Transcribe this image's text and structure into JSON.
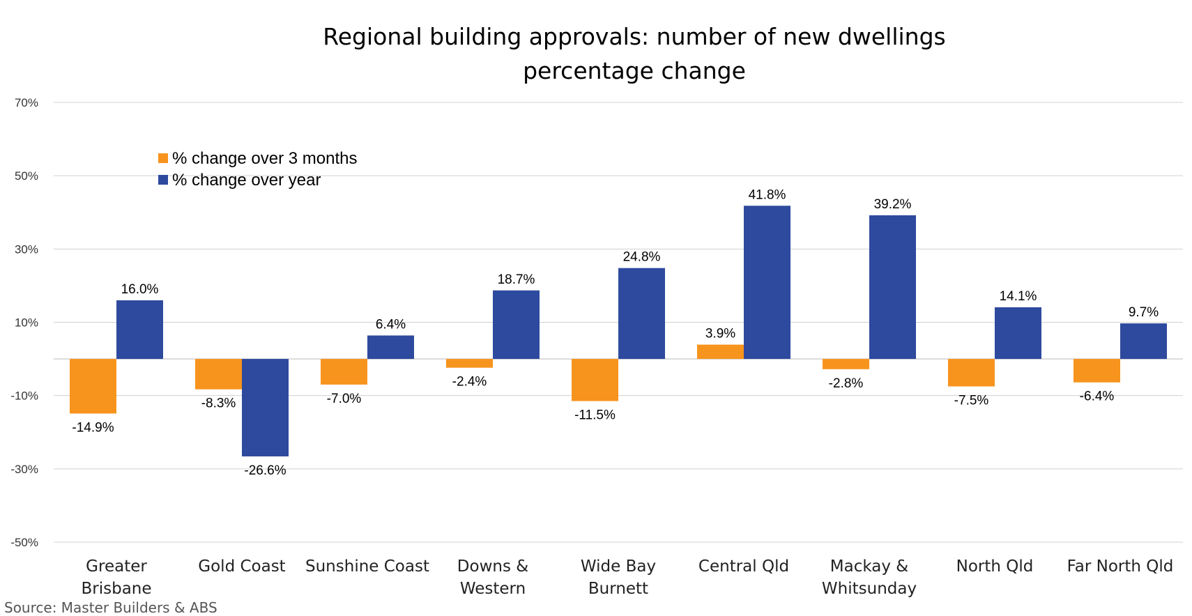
{
  "chart_data": {
    "type": "bar",
    "title": [
      "Regional building approvals: number of new dwellings",
      "percentage change"
    ],
    "categories": [
      [
        "Greater",
        "Brisbane"
      ],
      [
        "Gold Coast"
      ],
      [
        "Sunshine Coast"
      ],
      [
        "Downs &",
        "Western"
      ],
      [
        "Wide Bay",
        "Burnett"
      ],
      [
        "Central Qld"
      ],
      [
        "Mackay &",
        "Whitsunday"
      ],
      [
        "North Qld"
      ],
      [
        "Far North Qld"
      ]
    ],
    "series": [
      {
        "name": "% change over 3 months",
        "color": "#F7941D",
        "values": [
          -14.9,
          -8.3,
          -7.0,
          -2.4,
          -11.5,
          3.9,
          -2.8,
          -7.5,
          -6.4
        ],
        "labels": [
          "-14.9%",
          "-8.3%",
          "-7.0%",
          "-2.4%",
          "-11.5%",
          "3.9%",
          "-2.8%",
          "-7.5%",
          "-6.4%"
        ]
      },
      {
        "name": "% change over year",
        "color": "#2E4A9E",
        "values": [
          16.0,
          -26.6,
          6.4,
          18.7,
          24.8,
          41.8,
          39.2,
          14.1,
          9.7
        ],
        "labels": [
          "16.0%",
          "-26.6%",
          "6.4%",
          "18.7%",
          "24.8%",
          "41.8%",
          "39.2%",
          "14.1%",
          "9.7%"
        ]
      }
    ],
    "yticks": [
      70,
      50,
      30,
      10,
      -10,
      -30,
      -50
    ],
    "ytick_labels": [
      "70%",
      "50%",
      "30%",
      "10%",
      "-10%",
      "-30%",
      "-50%"
    ],
    "ylim": [
      -50,
      70
    ],
    "xlabel": "",
    "ylabel": "",
    "grid": true,
    "legend_position": "top-left",
    "source": "Source: Master Builders & ABS"
  }
}
